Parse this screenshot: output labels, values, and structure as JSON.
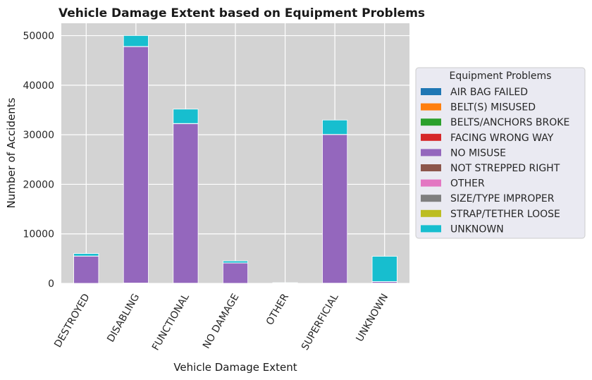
{
  "chart_data": {
    "type": "bar",
    "stacked": true,
    "title": "Vehicle Damage Extent based on Equipment Problems",
    "xlabel": "Vehicle Damage Extent",
    "ylabel": "Number of Accidents",
    "ylim": [
      0,
      52500
    ],
    "yticks": [
      0,
      10000,
      20000,
      30000,
      40000,
      50000
    ],
    "grid": true,
    "categories": [
      "DESTROYED",
      "DISABLING",
      "FUNCTIONAL",
      "NO DAMAGE",
      "OTHER",
      "SUPERFICIAL",
      "UNKNOWN"
    ],
    "legend": {
      "title": "Equipment Problems",
      "placement": "right"
    },
    "series": [
      {
        "name": "AIR BAG FAILED",
        "color": "#1f77b4",
        "values": [
          10,
          30,
          20,
          10,
          0,
          20,
          50
        ]
      },
      {
        "name": "BELT(S) MISUSED",
        "color": "#ff7f0e",
        "values": [
          5,
          30,
          20,
          10,
          0,
          20,
          10
        ]
      },
      {
        "name": "BELTS/ANCHORS BROKE",
        "color": "#2ca02c",
        "values": [
          2,
          10,
          5,
          2,
          0,
          5,
          2
        ]
      },
      {
        "name": "FACING WRONG WAY",
        "color": "#d62728",
        "values": [
          2,
          10,
          5,
          2,
          0,
          5,
          2
        ]
      },
      {
        "name": "NO MISUSE",
        "color": "#9467bd",
        "values": [
          5500,
          47700,
          32200,
          4100,
          100,
          30000,
          300
        ]
      },
      {
        "name": "NOT STREPPED RIGHT",
        "color": "#8c564b",
        "values": [
          2,
          10,
          5,
          2,
          0,
          5,
          2
        ]
      },
      {
        "name": "OTHER",
        "color": "#e377c2",
        "values": [
          5,
          20,
          10,
          5,
          0,
          10,
          5
        ]
      },
      {
        "name": "SIZE/TYPE IMPROPER",
        "color": "#7f7f7f",
        "values": [
          2,
          10,
          5,
          2,
          0,
          5,
          2
        ]
      },
      {
        "name": "STRAP/TETHER LOOSE",
        "color": "#bcbd22",
        "values": [
          2,
          5,
          5,
          2,
          0,
          5,
          2
        ]
      },
      {
        "name": "UNKNOWN",
        "color": "#17becf",
        "values": [
          500,
          2200,
          2900,
          400,
          50,
          2900,
          5100
        ]
      }
    ]
  },
  "colors": {
    "plot_background": "#d3d3d3",
    "grid": "#ffffff",
    "legend_background": "#eaeaf2",
    "legend_border": "#cccccc"
  }
}
